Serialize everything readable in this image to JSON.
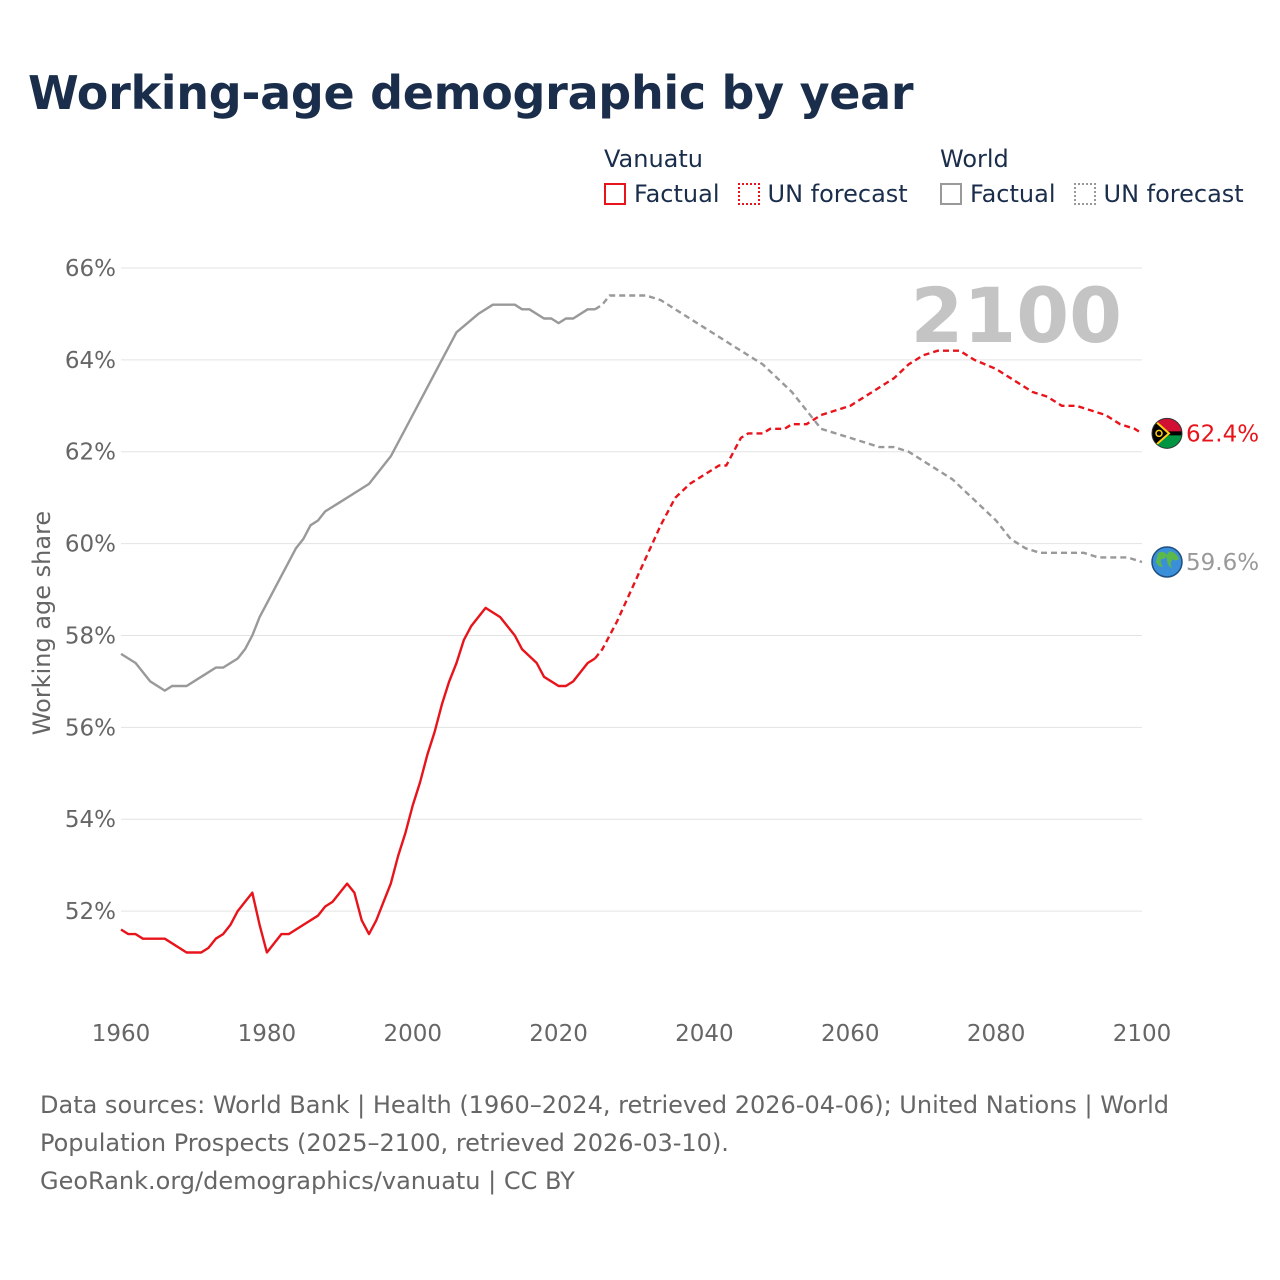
{
  "title": "Working-age demographic by year",
  "legend": {
    "groups": [
      {
        "name": "Vanuatu",
        "color": "#e8141b",
        "items": [
          {
            "label": "Factual",
            "style": "solid"
          },
          {
            "label": "UN forecast",
            "style": "dotted"
          }
        ]
      },
      {
        "name": "World",
        "color": "#999999",
        "items": [
          {
            "label": "Factual",
            "style": "solid"
          },
          {
            "label": "UN forecast",
            "style": "dotted"
          }
        ]
      }
    ]
  },
  "chart_data": {
    "type": "line",
    "title": "Working-age demographic by year",
    "xlabel": "",
    "ylabel": "Working age share",
    "xlim": [
      1960,
      2100
    ],
    "ylim": [
      50,
      66.5
    ],
    "x_ticks": [
      1960,
      1980,
      2000,
      2020,
      2040,
      2060,
      2080,
      2100
    ],
    "x_tick_labels": [
      "1960",
      "1980",
      "2000",
      "2020",
      "2040",
      "2060",
      "2080",
      "2100"
    ],
    "y_ticks": [
      52,
      54,
      56,
      58,
      60,
      62,
      64,
      66
    ],
    "y_tick_labels": [
      "52%",
      "54%",
      "56%",
      "58%",
      "60%",
      "62%",
      "64%",
      "66%"
    ],
    "grid": true,
    "year_watermark": "2100",
    "series": [
      {
        "name": "Vanuatu",
        "kind": "factual",
        "color": "#e8141b",
        "points": [
          [
            1960,
            51.6
          ],
          [
            1961,
            51.5
          ],
          [
            1962,
            51.5
          ],
          [
            1963,
            51.4
          ],
          [
            1965,
            51.4
          ],
          [
            1966,
            51.4
          ],
          [
            1967,
            51.3
          ],
          [
            1968,
            51.2
          ],
          [
            1969,
            51.1
          ],
          [
            1971,
            51.1
          ],
          [
            1972,
            51.2
          ],
          [
            1973,
            51.4
          ],
          [
            1974,
            51.5
          ],
          [
            1975,
            51.7
          ],
          [
            1976,
            52.0
          ],
          [
            1977,
            52.2
          ],
          [
            1978,
            52.4
          ],
          [
            1979,
            51.7
          ],
          [
            1980,
            51.1
          ],
          [
            1982,
            51.5
          ],
          [
            1983,
            51.5
          ],
          [
            1985,
            51.7
          ],
          [
            1987,
            51.9
          ],
          [
            1988,
            52.1
          ],
          [
            1989,
            52.2
          ],
          [
            1990,
            52.4
          ],
          [
            1991,
            52.6
          ],
          [
            1992,
            52.4
          ],
          [
            1993,
            51.8
          ],
          [
            1994,
            51.5
          ],
          [
            1995,
            51.8
          ],
          [
            1996,
            52.2
          ],
          [
            1997,
            52.6
          ],
          [
            1998,
            53.2
          ],
          [
            1999,
            53.7
          ],
          [
            2000,
            54.3
          ],
          [
            2001,
            54.8
          ],
          [
            2002,
            55.4
          ],
          [
            2003,
            55.9
          ],
          [
            2004,
            56.5
          ],
          [
            2005,
            57.0
          ],
          [
            2006,
            57.4
          ],
          [
            2007,
            57.9
          ],
          [
            2008,
            58.2
          ],
          [
            2009,
            58.4
          ],
          [
            2010,
            58.6
          ],
          [
            2012,
            58.4
          ],
          [
            2014,
            58.0
          ],
          [
            2015,
            57.7
          ],
          [
            2017,
            57.4
          ],
          [
            2018,
            57.1
          ],
          [
            2020,
            56.9
          ],
          [
            2021,
            56.9
          ],
          [
            2022,
            57.0
          ],
          [
            2024,
            57.4
          ],
          [
            2025,
            57.5
          ]
        ]
      },
      {
        "name": "Vanuatu",
        "kind": "forecast",
        "color": "#e8141b",
        "points": [
          [
            2025,
            57.5
          ],
          [
            2026,
            57.7
          ],
          [
            2028,
            58.3
          ],
          [
            2030,
            59.0
          ],
          [
            2032,
            59.7
          ],
          [
            2034,
            60.4
          ],
          [
            2036,
            61.0
          ],
          [
            2038,
            61.3
          ],
          [
            2040,
            61.5
          ],
          [
            2042,
            61.7
          ],
          [
            2043,
            61.7
          ],
          [
            2045,
            62.3
          ],
          [
            2046,
            62.4
          ],
          [
            2048,
            62.4
          ],
          [
            2049,
            62.5
          ],
          [
            2051,
            62.5
          ],
          [
            2052,
            62.6
          ],
          [
            2054,
            62.6
          ],
          [
            2056,
            62.8
          ],
          [
            2058,
            62.9
          ],
          [
            2060,
            63.0
          ],
          [
            2062,
            63.2
          ],
          [
            2064,
            63.4
          ],
          [
            2066,
            63.6
          ],
          [
            2068,
            63.9
          ],
          [
            2070,
            64.1
          ],
          [
            2072,
            64.2
          ],
          [
            2075,
            64.2
          ],
          [
            2077,
            64.0
          ],
          [
            2080,
            63.8
          ],
          [
            2082,
            63.6
          ],
          [
            2085,
            63.3
          ],
          [
            2087,
            63.2
          ],
          [
            2089,
            63.0
          ],
          [
            2091,
            63.0
          ],
          [
            2093,
            62.9
          ],
          [
            2095,
            62.8
          ],
          [
            2097,
            62.6
          ],
          [
            2099,
            62.5
          ],
          [
            2100,
            62.4
          ]
        ]
      },
      {
        "name": "World",
        "kind": "factual",
        "color": "#999999",
        "points": [
          [
            1960,
            57.6
          ],
          [
            1962,
            57.4
          ],
          [
            1964,
            57.0
          ],
          [
            1966,
            56.8
          ],
          [
            1967,
            56.9
          ],
          [
            1969,
            56.9
          ],
          [
            1971,
            57.1
          ],
          [
            1973,
            57.3
          ],
          [
            1974,
            57.3
          ],
          [
            1976,
            57.5
          ],
          [
            1977,
            57.7
          ],
          [
            1978,
            58.0
          ],
          [
            1979,
            58.4
          ],
          [
            1980,
            58.7
          ],
          [
            1982,
            59.3
          ],
          [
            1984,
            59.9
          ],
          [
            1985,
            60.1
          ],
          [
            1986,
            60.4
          ],
          [
            1987,
            60.5
          ],
          [
            1988,
            60.7
          ],
          [
            1990,
            60.9
          ],
          [
            1992,
            61.1
          ],
          [
            1994,
            61.3
          ],
          [
            1997,
            61.9
          ],
          [
            2000,
            62.8
          ],
          [
            2003,
            63.7
          ],
          [
            2006,
            64.6
          ],
          [
            2009,
            65.0
          ],
          [
            2011,
            65.2
          ],
          [
            2014,
            65.2
          ],
          [
            2015,
            65.1
          ],
          [
            2016,
            65.1
          ],
          [
            2018,
            64.9
          ],
          [
            2019,
            64.9
          ],
          [
            2020,
            64.8
          ],
          [
            2021,
            64.9
          ],
          [
            2022,
            64.9
          ],
          [
            2024,
            65.1
          ],
          [
            2025,
            65.1
          ]
        ]
      },
      {
        "name": "World",
        "kind": "forecast",
        "color": "#999999",
        "points": [
          [
            2025,
            65.1
          ],
          [
            2026,
            65.2
          ],
          [
            2027,
            65.4
          ],
          [
            2032,
            65.4
          ],
          [
            2034,
            65.3
          ],
          [
            2036,
            65.1
          ],
          [
            2038,
            64.9
          ],
          [
            2040,
            64.7
          ],
          [
            2042,
            64.5
          ],
          [
            2045,
            64.2
          ],
          [
            2048,
            63.9
          ],
          [
            2050,
            63.6
          ],
          [
            2052,
            63.3
          ],
          [
            2054,
            62.9
          ],
          [
            2056,
            62.5
          ],
          [
            2058,
            62.4
          ],
          [
            2060,
            62.3
          ],
          [
            2062,
            62.2
          ],
          [
            2064,
            62.1
          ],
          [
            2066,
            62.1
          ],
          [
            2068,
            62.0
          ],
          [
            2070,
            61.8
          ],
          [
            2072,
            61.6
          ],
          [
            2074,
            61.4
          ],
          [
            2076,
            61.1
          ],
          [
            2078,
            60.8
          ],
          [
            2080,
            60.5
          ],
          [
            2082,
            60.1
          ],
          [
            2084,
            59.9
          ],
          [
            2086,
            59.8
          ],
          [
            2088,
            59.8
          ],
          [
            2092,
            59.8
          ],
          [
            2094,
            59.7
          ],
          [
            2096,
            59.7
          ],
          [
            2098,
            59.7
          ],
          [
            2100,
            59.6
          ]
        ]
      }
    ],
    "end_labels": [
      {
        "series": "Vanuatu",
        "text": "62.4%",
        "value": 62.4,
        "color": "#e8141b",
        "icon": "vanuatu-flag-icon"
      },
      {
        "series": "World",
        "text": "59.6%",
        "value": 59.6,
        "color": "#999999",
        "icon": "globe-icon"
      }
    ]
  },
  "sources": {
    "line1": "Data sources: World Bank | Health (1960–2024, retrieved 2026-04-06); United Nations | World",
    "line2": "Population Prospects (2025–2100, retrieved 2026-03-10).",
    "line3": "GeoRank.org/demographics/vanuatu | CC BY"
  }
}
